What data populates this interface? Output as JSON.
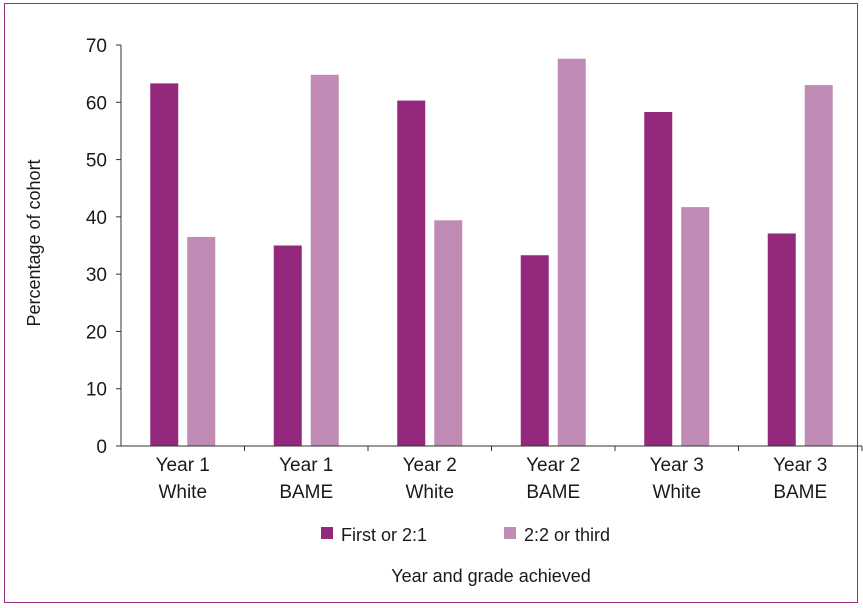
{
  "chart_data": {
    "type": "bar",
    "categories": [
      [
        "Year 1",
        "White"
      ],
      [
        "Year 1",
        "BAME"
      ],
      [
        "Year 2",
        "White"
      ],
      [
        "Year 2",
        "BAME"
      ],
      [
        "Year 3",
        "White"
      ],
      [
        "Year 3",
        "BAME"
      ]
    ],
    "series": [
      {
        "name": "First or 2:1",
        "color": "#93297d",
        "values": [
          63.3,
          35.0,
          60.3,
          33.3,
          58.3,
          37.1
        ]
      },
      {
        "name": "2:2 or third",
        "color": "#c08bb4",
        "values": [
          36.5,
          64.8,
          39.4,
          67.6,
          41.7,
          63.0
        ]
      }
    ],
    "xlabel": "Year and grade achieved",
    "ylabel": "Percentage of cohort",
    "ylim": [
      0,
      70
    ],
    "yticks": [
      0,
      10,
      20,
      30,
      40,
      50,
      60,
      70
    ],
    "grid": false,
    "legend": "bottom"
  }
}
